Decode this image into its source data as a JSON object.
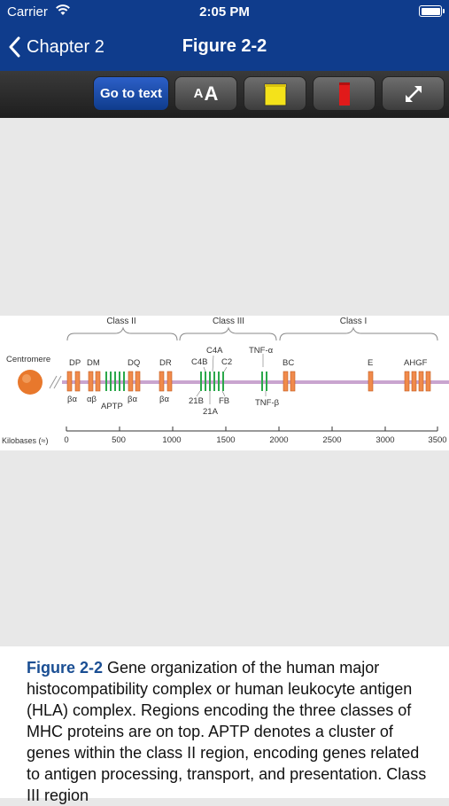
{
  "status_bar": {
    "carrier": "Carrier",
    "time": "2:05 PM"
  },
  "nav": {
    "back_label": "Chapter 2",
    "title": "Figure 2-2"
  },
  "toolbar": {
    "goto_label": "Go to text",
    "font_small": "A",
    "font_large": "A"
  },
  "figure": {
    "class_labels": [
      "Class II",
      "Class III",
      "Class I"
    ],
    "centromere": "Centromere",
    "genes": {
      "dp": "DP",
      "dm": "DM",
      "dq": "DQ",
      "dr": "DR",
      "c4a": "C4A",
      "c4b": "C4B",
      "c2": "C2",
      "tnf_a": "TNF-α",
      "bc": "BC",
      "e": "E",
      "ahgf": "AHGF",
      "ba1": "βα",
      "ab": "αβ",
      "aptp": "APTP",
      "ba2": "βα",
      "ba3": "βα",
      "b21": "21B",
      "fb": "FB",
      "a21": "21A",
      "tnf_b": "TNF-β"
    },
    "axis": {
      "label": "Kilobases (≈)",
      "ticks": [
        "0",
        "500",
        "1000",
        "1500",
        "2000",
        "2500",
        "3000",
        "3500"
      ]
    },
    "colors": {
      "gene_box": "#f08a4b",
      "green_gene": "#2aa84a",
      "chromosome": "#c9a5cf",
      "centromere": "#e8782c"
    }
  },
  "caption": {
    "figure_number": "Figure 2-2",
    "text": " Gene organization of the human major histocompatibility complex or human leukocyte antigen (HLA) complex. Regions encoding the three classes of MHC proteins are on top. APTP denotes a cluster of genes within the class II region, encoding genes related to antigen processing, transport, and presentation. Class III region"
  }
}
